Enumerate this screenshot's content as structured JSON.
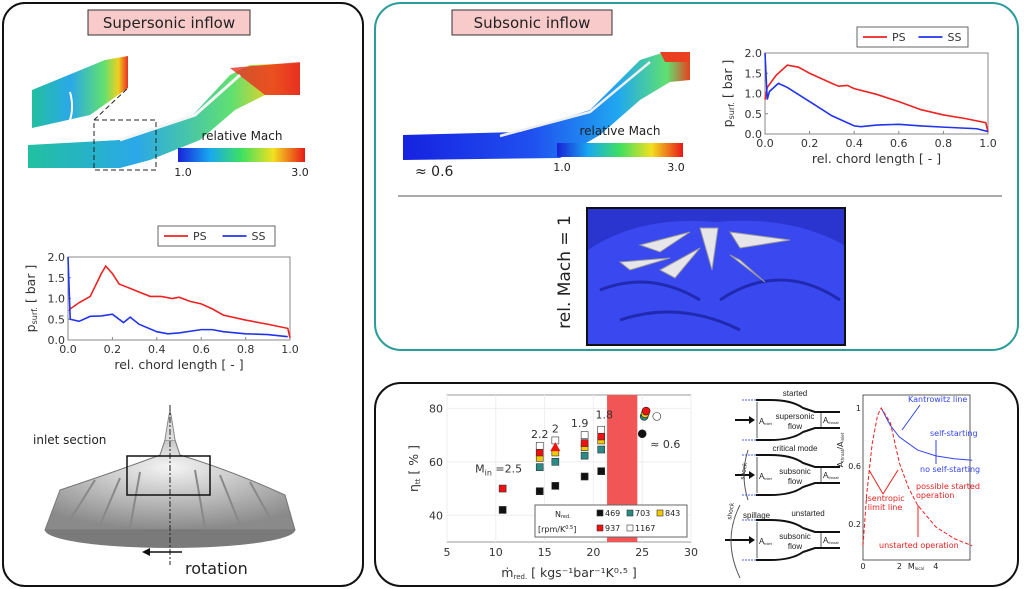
{
  "left_panel": {
    "title": "Supersonic inflow",
    "colorbar": {
      "label": "relative Mach",
      "min": "1.0",
      "max": "3.0"
    },
    "impeller": {
      "inlet_label": "inlet section",
      "rotation_label": "rotation"
    }
  },
  "right_top_panel": {
    "title": "Subsonic inflow",
    "colorbar": {
      "label": "relative Mach",
      "min": "1.0",
      "max": "3.0"
    },
    "mach_annotation": "≈ 0.6",
    "rel_mach_label": "rel. Mach = 1"
  },
  "bottom_panel": {
    "nozzles": [
      {
        "state": "started",
        "flow": [
          "supersonic",
          "flow"
        ],
        "a_inlet": "A",
        "a_inlet_sub": "inlet",
        "a_throat": "A",
        "a_throat_sub": "throat"
      },
      {
        "state": "critical mode",
        "shock": "shock",
        "flow": [
          "subsonic",
          "flow"
        ],
        "a_inlet": "A",
        "a_inlet_sub": "inlet",
        "a_throat": "A",
        "a_throat_sub": "throat"
      },
      {
        "state": "unstarted",
        "shock": "shock",
        "spillage": "spillage",
        "flow": [
          "subsonic",
          "flow"
        ],
        "a_inlet": "A",
        "a_inlet_sub": "inlet",
        "a_throat": "A",
        "a_throat_sub": "throat"
      }
    ]
  },
  "colors": {
    "ps": "#ee2222",
    "ss": "#2233ee",
    "teal_border": "#2a9d9a",
    "title_fill": "#f9caca",
    "band": "#f25555"
  },
  "chart_data": [
    {
      "id": "supersonic-pressure",
      "type": "line",
      "xlabel": "rel. chord length [ - ]",
      "ylabel": "p",
      "ylabel_sub": "surf.",
      "ylabel_unit": " [ bar ]",
      "xlim": [
        0,
        1
      ],
      "ylim": [
        0,
        2
      ],
      "xticks": [
        "0.0",
        "0.2",
        "0.4",
        "0.6",
        "0.8",
        "1.0"
      ],
      "yticks": [
        "0.0",
        "0.5",
        "1.0",
        "1.5",
        "2.0"
      ],
      "legend": "top-right",
      "series": [
        {
          "name": "PS",
          "x": [
            0.005,
            0.01,
            0.05,
            0.1,
            0.15,
            0.17,
            0.2,
            0.23,
            0.3,
            0.37,
            0.42,
            0.47,
            0.5,
            0.55,
            0.6,
            0.65,
            0.7,
            0.8,
            0.9,
            0.99,
            1.0
          ],
          "y": [
            0.7,
            0.75,
            0.9,
            1.05,
            1.6,
            1.78,
            1.6,
            1.35,
            1.2,
            1.05,
            1.05,
            1.0,
            1.03,
            0.93,
            0.87,
            0.75,
            0.6,
            0.48,
            0.38,
            0.28,
            0.05
          ]
        },
        {
          "name": "SS",
          "x": [
            0,
            0.01,
            0.05,
            0.1,
            0.15,
            0.2,
            0.25,
            0.28,
            0.32,
            0.4,
            0.45,
            0.5,
            0.6,
            0.65,
            0.7,
            0.8,
            0.9,
            0.99
          ],
          "y": [
            2.0,
            0.5,
            0.45,
            0.57,
            0.58,
            0.62,
            0.42,
            0.55,
            0.38,
            0.2,
            0.15,
            0.17,
            0.25,
            0.25,
            0.2,
            0.15,
            0.13,
            0.08
          ]
        }
      ]
    },
    {
      "id": "subsonic-pressure",
      "type": "line",
      "xlabel": "rel. chord length [ - ]",
      "ylabel": "p",
      "ylabel_sub": "surf.",
      "ylabel_unit": " [ bar ]",
      "xlim": [
        0,
        1
      ],
      "ylim": [
        0,
        2
      ],
      "xticks": [
        "0.0",
        "0.2",
        "0.4",
        "0.6",
        "0.8",
        "1.0"
      ],
      "yticks": [
        "0.0",
        "0.5",
        "1.0",
        "1.5",
        "2.0"
      ],
      "legend": "top-right",
      "series": [
        {
          "name": "PS",
          "x": [
            0,
            0.01,
            0.05,
            0.1,
            0.15,
            0.2,
            0.3,
            0.33,
            0.37,
            0.4,
            0.5,
            0.6,
            0.7,
            0.8,
            0.9,
            0.99,
            1.0
          ],
          "y": [
            0.85,
            1.15,
            1.45,
            1.7,
            1.65,
            1.5,
            1.25,
            1.18,
            1.2,
            1.12,
            0.98,
            0.8,
            0.6,
            0.47,
            0.38,
            0.28,
            0.05
          ]
        },
        {
          "name": "SS",
          "x": [
            0,
            0.01,
            0.02,
            0.06,
            0.1,
            0.2,
            0.3,
            0.4,
            0.43,
            0.5,
            0.6,
            0.7,
            0.8,
            0.95,
            1.0
          ],
          "y": [
            2.0,
            0.85,
            1.05,
            1.25,
            1.15,
            0.8,
            0.45,
            0.2,
            0.18,
            0.22,
            0.24,
            0.2,
            0.17,
            0.13,
            0.06
          ]
        }
      ]
    },
    {
      "id": "efficiency",
      "type": "scatter",
      "xlabel": "ṁ",
      "xlabel_sub": "red.",
      "xlabel_unit": " [ kgs⁻¹bar⁻¹K⁰·⁵ ]",
      "ylabel": "η",
      "ylabel_sub": "tt",
      "ylabel_unit": " [ % ]",
      "xlim": [
        5,
        30
      ],
      "ylim": [
        30,
        85
      ],
      "xticks": [
        "5",
        "10",
        "15",
        "20",
        "25",
        "30"
      ],
      "yticks": [
        "40",
        "60",
        "80"
      ],
      "highlight_band": [
        21.4,
        24.5
      ],
      "legend": {
        "title": "N",
        "title_sub": "red.",
        "unit": "[rpm/K",
        "unit_sup": "0.5",
        "unit_end": "]"
      },
      "series": [
        {
          "name": "469",
          "color": "#111111",
          "x": [
            10.7,
            14.5,
            16.1,
            19.1,
            20.8
          ],
          "y": [
            42,
            49,
            51,
            54.5,
            56.5
          ],
          "marker": "square"
        },
        {
          "name": "703",
          "color": "#2a8a86",
          "x": [
            14.5,
            16.1,
            19.1,
            20.8
          ],
          "y": [
            58,
            60,
            62.3,
            64.6
          ],
          "marker": "square"
        },
        {
          "name": "843",
          "color": "#f2c800",
          "x": [
            14.5,
            16.1,
            19.1,
            20.8
          ],
          "y": [
            61.5,
            63.5,
            65.5,
            68
          ],
          "marker": "square"
        },
        {
          "name": "937",
          "color": "#ee1111",
          "x": [
            10.7,
            14.5,
            19.1,
            20.8
          ],
          "y": [
            50,
            63.5,
            67,
            69.5
          ],
          "marker": "square"
        },
        {
          "name": "1167",
          "color": "#ffffff",
          "x": [
            14.5,
            16.1,
            19.1,
            20.8
          ],
          "y": [
            66,
            68,
            70,
            72
          ],
          "marker": "square"
        }
      ],
      "extra_points": [
        {
          "x": 16.1,
          "y": 65.5,
          "color": "#ee1111",
          "marker": "triangle"
        },
        {
          "x": 25.0,
          "y": 70.5,
          "color": "#111111",
          "marker": "circle"
        },
        {
          "x": 25.2,
          "y": 77,
          "color": "#2a8a86",
          "marker": "circle"
        },
        {
          "x": 25.3,
          "y": 78,
          "color": "#f2c800",
          "marker": "circle"
        },
        {
          "x": 25.4,
          "y": 79,
          "color": "#ee1111",
          "marker": "circle"
        },
        {
          "x": 26.5,
          "y": 77,
          "color": "#ffffff",
          "marker": "circle"
        }
      ],
      "annotations": [
        {
          "text": "M",
          "sub": "in",
          "rest": " =2.5",
          "x": 10.7,
          "y": 50
        },
        {
          "text": "2.2",
          "x": 14.5,
          "y": 66
        },
        {
          "text": "2",
          "x": 16.1,
          "y": 68
        },
        {
          "text": "1.9",
          "x": 19.1,
          "y": 70
        },
        {
          "text": "1.8",
          "x": 20.8,
          "y": 72
        },
        {
          "text": "≈ 0.6",
          "x": 25.0,
          "y": 70.5
        }
      ]
    },
    {
      "id": "kantrowitz",
      "type": "line",
      "xlabel": "M",
      "xlabel_sub": "local",
      "ylabel": "A",
      "ylabel_sub": "throat",
      "ylabel_mid": "/A",
      "ylabel_sub2": "inlet",
      "xlim": [
        0,
        6
      ],
      "ylim": [
        0,
        1.1
      ],
      "xticks": [
        "0",
        "2",
        "4"
      ],
      "yticks": [
        "0.2",
        "0.6",
        "1"
      ],
      "series": [
        {
          "name": "Kantrowitz line",
          "color": "#3344ee",
          "x": [
            1,
            1.5,
            2,
            3,
            4,
            5,
            6
          ],
          "y": [
            1,
            0.88,
            0.8,
            0.71,
            0.67,
            0.65,
            0.64
          ]
        },
        {
          "name": "isentropic limit line",
          "color": "#ee2222",
          "x": [
            0,
            0.2,
            0.5,
            0.8,
            1,
            1.5,
            2,
            2.5,
            3,
            4,
            5,
            6
          ],
          "y": [
            0.05,
            0.4,
            0.75,
            0.95,
            1,
            0.9,
            0.62,
            0.45,
            0.33,
            0.18,
            0.1,
            0.05
          ]
        }
      ],
      "annotations": {
        "kantrowitz": "Kantrowitz line",
        "self_starting": "self-starting",
        "no_self_starting": "no self-starting",
        "isentropic": [
          "isentropic",
          "limit line"
        ],
        "possible": [
          "possible started",
          "operation"
        ],
        "unstarted": "unstarted operation"
      }
    }
  ]
}
